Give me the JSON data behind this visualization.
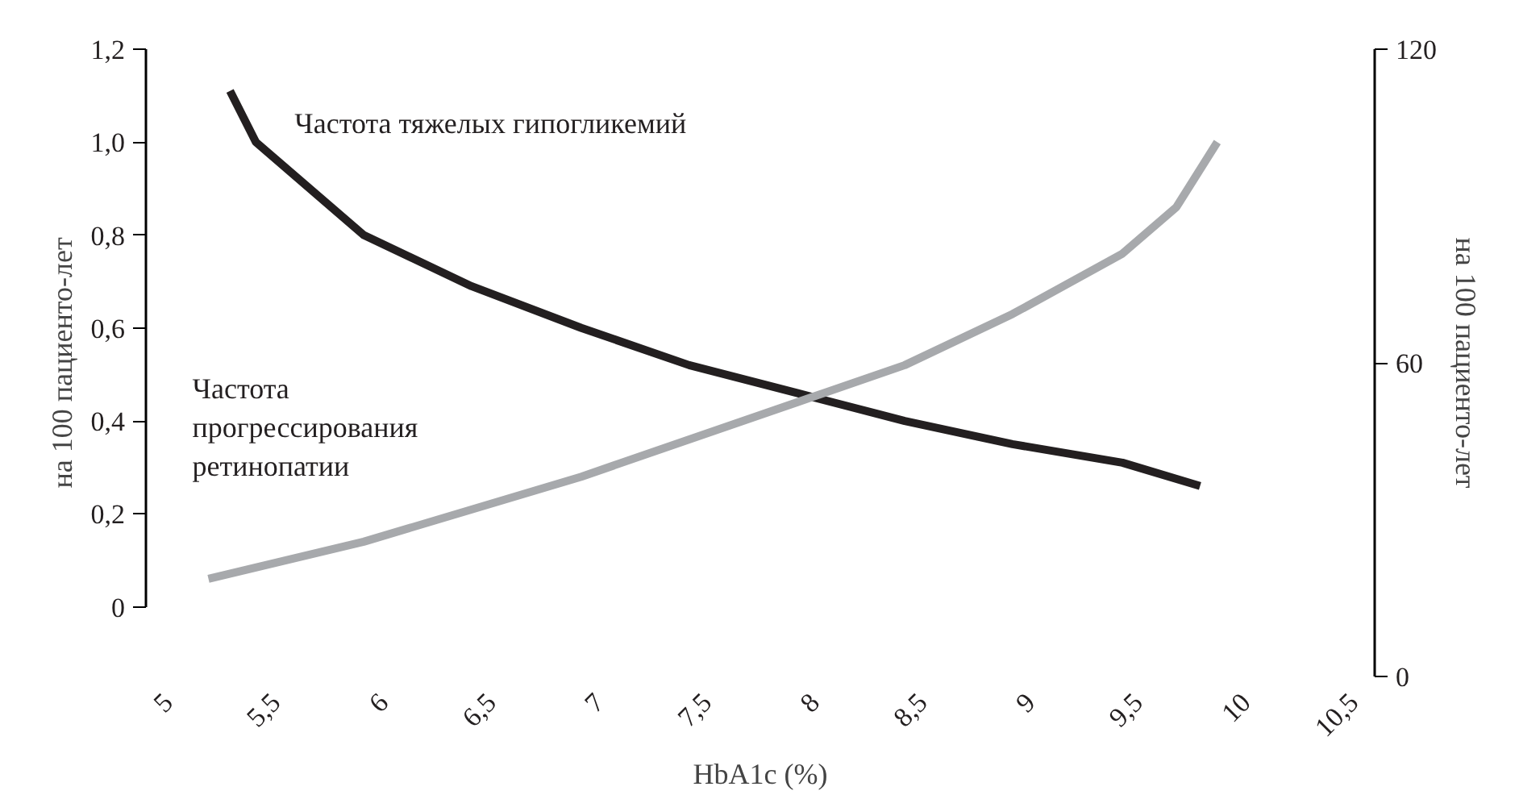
{
  "chart_data": {
    "type": "line",
    "xlabel": "HbA1c (%)",
    "ylabel": "на 100 пациенто-лет",
    "y2label": "на 100 пациенто-лет",
    "xlim": [
      4.9,
      10.6
    ],
    "xticks": [
      {
        "value": 5,
        "label": "5"
      },
      {
        "value": 5.5,
        "label": "5,5"
      },
      {
        "value": 6,
        "label": "6"
      },
      {
        "value": 6.5,
        "label": "6,5"
      },
      {
        "value": 7,
        "label": "7"
      },
      {
        "value": 7.5,
        "label": "7,5"
      },
      {
        "value": 8,
        "label": "8"
      },
      {
        "value": 8.5,
        "label": "8,5"
      },
      {
        "value": 9,
        "label": "9"
      },
      {
        "value": 9.5,
        "label": "9,5"
      },
      {
        "value": 10,
        "label": "10"
      },
      {
        "value": 10.5,
        "label": "10,5"
      }
    ],
    "ylim": [
      -0.15,
      1.2
    ],
    "yticks": [
      0,
      {
        "value": 0.2,
        "label": "0,2"
      },
      {
        "value": 0.4,
        "label": "0,4"
      },
      {
        "value": 0.6,
        "label": "0,6"
      },
      {
        "value": 0.8,
        "label": "0,8"
      },
      {
        "value": 1.0,
        "label": "1,0"
      },
      {
        "value": 1.2,
        "label": "1,2"
      }
    ],
    "y2lim": [
      0,
      120
    ],
    "y2ticks": [
      0,
      60,
      120
    ],
    "grid": false,
    "marker": "none",
    "line_style": "solid",
    "series": [
      {
        "name": "Частота тяжелых гипогликемий",
        "color": "#231f20",
        "x": [
          5.29,
          5.41,
          5.91,
          6.41,
          6.92,
          7.42,
          7.92,
          8.42,
          8.92,
          9.43,
          9.79
        ],
        "values": [
          1.11,
          1.0,
          0.8,
          0.69,
          0.6,
          0.52,
          0.46,
          0.4,
          0.35,
          0.31,
          0.26
        ]
      },
      {
        "name": "Частота\nпрогрессирования\nретинопатии",
        "color": "#a7a9ac",
        "x": [
          5.19,
          5.91,
          6.92,
          7.92,
          8.42,
          8.92,
          9.43,
          9.68,
          9.87
        ],
        "values": [
          0.06,
          0.14,
          0.28,
          0.44,
          0.52,
          0.63,
          0.76,
          0.86,
          1.0
        ]
      }
    ]
  }
}
